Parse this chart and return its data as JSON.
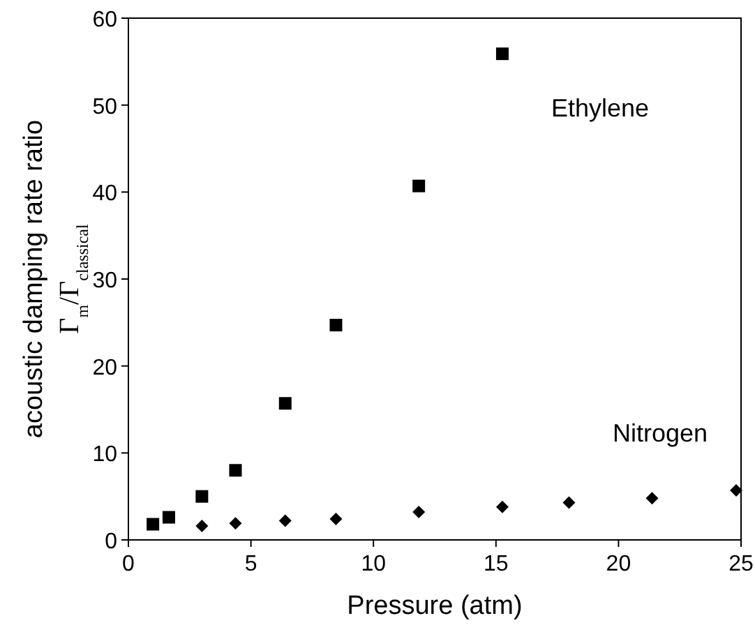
{
  "chart_data": {
    "type": "scatter",
    "xlabel": "Pressure (atm)",
    "ylabel": "acoustic damping rate ratio\nΓ$_{m}$/Γ$_{classical}$",
    "xlim": [
      0,
      25
    ],
    "ylim": [
      0,
      60
    ],
    "xticks": [
      0,
      5,
      10,
      15,
      20,
      25
    ],
    "yticks": [
      0,
      10,
      20,
      30,
      40,
      50,
      60
    ],
    "grid": false,
    "series": [
      {
        "name": "Ethylene",
        "color": "#000000",
        "marker": "square",
        "x": [
          1.0,
          1.65,
          3.0,
          4.37,
          6.4,
          8.47,
          11.85,
          15.26
        ],
        "values": [
          1.8,
          2.6,
          5.0,
          8.0,
          15.7,
          24.7,
          40.7,
          55.9
        ]
      },
      {
        "name": "Nitrogen",
        "color": "#000000",
        "marker": "diamond",
        "x": [
          3.0,
          4.37,
          6.4,
          8.47,
          11.85,
          15.26,
          17.98,
          21.37,
          24.8
        ],
        "values": [
          1.6,
          1.9,
          2.2,
          2.4,
          3.2,
          3.8,
          4.3,
          4.8,
          5.7
        ]
      }
    ]
  }
}
